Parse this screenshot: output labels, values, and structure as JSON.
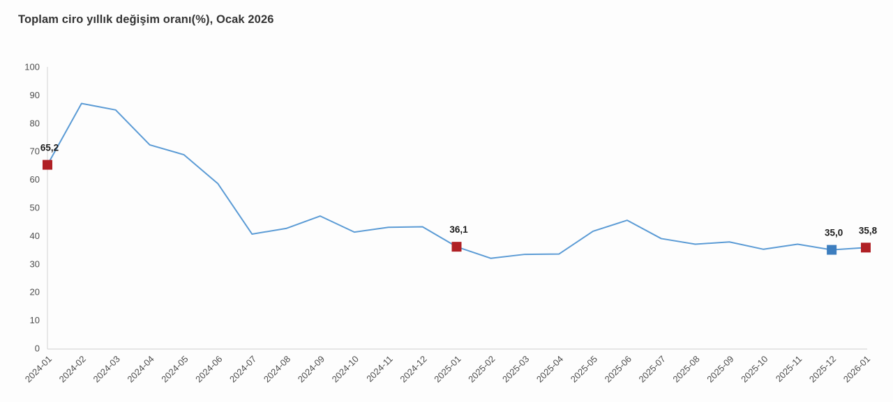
{
  "header": {
    "title": "Toplam ciro yıllık değişim oranı(%), Ocak 2026"
  },
  "chart_data": {
    "type": "line",
    "title": "Toplam ciro yıllık değişim oranı(%), Ocak 2026",
    "xlabel": "",
    "ylabel": "",
    "ylim": [
      0,
      100
    ],
    "yticks": [
      0,
      10,
      20,
      30,
      40,
      50,
      60,
      70,
      80,
      90,
      100
    ],
    "grid": false,
    "legend": "none",
    "x_label_rotation": -45,
    "categories": [
      "2024-01",
      "2024-02",
      "2024-03",
      "2024-04",
      "2024-05",
      "2024-06",
      "2024-07",
      "2024-08",
      "2024-09",
      "2024-10",
      "2024-11",
      "2024-12",
      "2025-01",
      "2025-02",
      "2025-03",
      "2025-04",
      "2025-05",
      "2025-06",
      "2025-07",
      "2025-08",
      "2025-09",
      "2025-10",
      "2025-11",
      "2025-12",
      "2026-01"
    ],
    "values": [
      65.2,
      87.0,
      84.7,
      72.3,
      68.8,
      58.5,
      40.6,
      42.6,
      47.0,
      41.3,
      43.0,
      43.2,
      36.1,
      32.0,
      33.4,
      33.5,
      41.6,
      45.5,
      39.0,
      37.0,
      37.8,
      35.2,
      37.0,
      35.0,
      35.8
    ],
    "marked_points": [
      {
        "category": "2024-01",
        "value": 65.2,
        "label": "65,2",
        "color": "#b02025"
      },
      {
        "category": "2025-01",
        "value": 36.1,
        "label": "36,1",
        "color": "#b02025"
      },
      {
        "category": "2025-12",
        "value": 35.0,
        "label": "35,0",
        "color": "#3d7ebf"
      },
      {
        "category": "2026-01",
        "value": 35.8,
        "label": "35,8",
        "color": "#b02025"
      }
    ],
    "colors": {
      "line": "#5b9bd5",
      "marker_red": "#b02025",
      "marker_blue": "#3d7ebf",
      "axis": "#d9d9d9",
      "tick_labels": "#4d4d4d",
      "point_labels": "#1a1a1a",
      "title": "#333333",
      "background": "#fdfdfd"
    }
  }
}
